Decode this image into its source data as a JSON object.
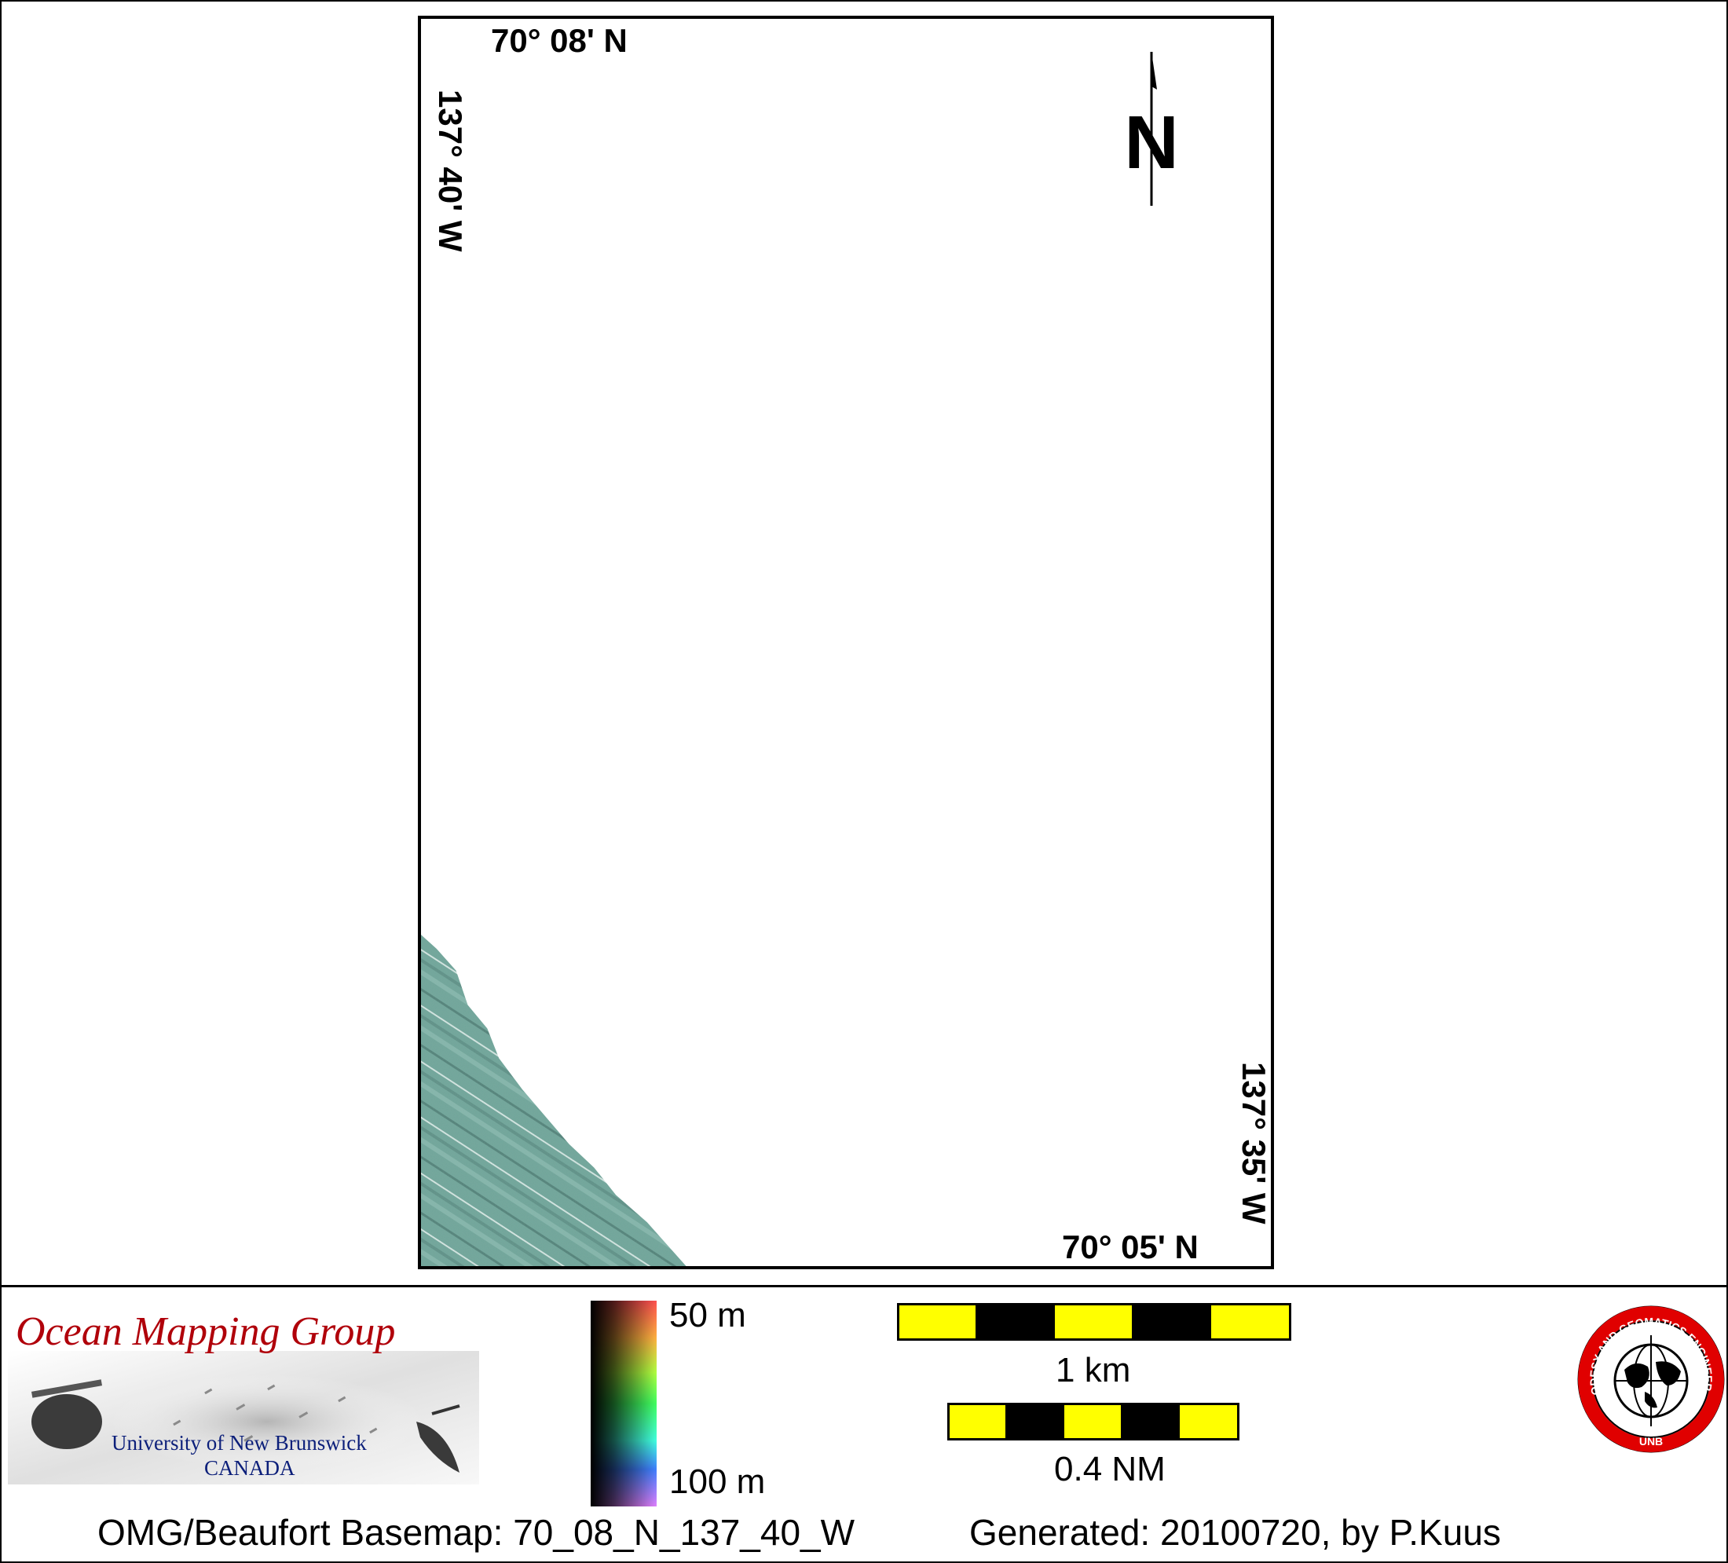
{
  "map": {
    "labels": {
      "lat_north": "70° 08' N",
      "lat_south": "70° 05' N",
      "lon_west": "137° 40' W",
      "lon_east": "137° 35' W"
    },
    "north_arrow": {
      "letter": "N",
      "icon": "north-arrow-icon"
    },
    "bathymetry_color": "#6fa69a"
  },
  "logo": {
    "title": "Ocean Mapping Group",
    "line1": "University of New Brunswick",
    "line2": "CANADA",
    "title_color": "#b0000a",
    "text_color": "#0c1f7a"
  },
  "colorbar": {
    "top_label": "50 m",
    "bottom_label": "100 m"
  },
  "scale": {
    "km_label": "1 km",
    "nm_label": "0.4 NM",
    "colors": [
      "#ffff00",
      "#000000"
    ]
  },
  "seal": {
    "text": "GEODESY AND GEOMATICS ENGINEERING",
    "bottom": "UNB",
    "ring_color": "#e00000"
  },
  "footer": {
    "caption": "OMG/Beaufort Basemap: 70_08_N_137_40_W",
    "generated": "Generated: 20100720, by P.Kuus"
  }
}
